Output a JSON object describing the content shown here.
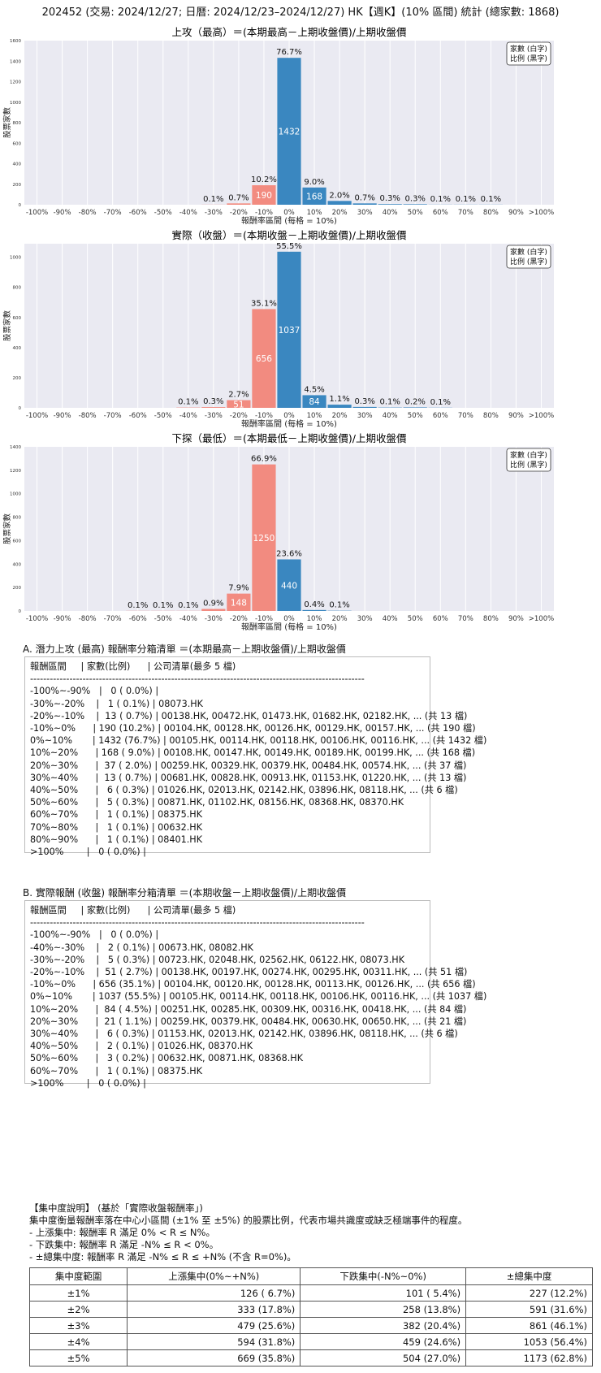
{
  "page_title": "202452 (交易: 2024/12/27; 日曆: 2024/12/23–2024/12/27) HK【週K】(10% 區間) 統計 (總家數: 1868)",
  "legend_box": {
    "line1": "家數 (白字)",
    "line2": "比例 (黑字)"
  },
  "colors": {
    "negative": "#f28b80",
    "positive": "#3a87c0",
    "plot_bg": "#eaeaf2"
  },
  "chart_data": [
    {
      "type": "bar",
      "title": "上攻（最高）＝(本期最高－上期收盤價)/上期收盤價",
      "xlabel": "報酬率區間 (每格 = 10%)",
      "ylabel": "股票家數",
      "categories": [
        "-100%",
        "-90%",
        "-80%",
        "-70%",
        "-60%",
        "-50%",
        "-40%",
        "-30%",
        "-20%",
        "-10%",
        "0%",
        "10%",
        "20%",
        "30%",
        "40%",
        "50%",
        "60%",
        "70%",
        "80%",
        "90%",
        ">100%"
      ],
      "values": [
        0,
        0,
        0,
        0,
        0,
        0,
        0,
        1,
        13,
        190,
        1432,
        168,
        37,
        13,
        6,
        5,
        1,
        1,
        1,
        0,
        0
      ],
      "pct_labels": [
        "",
        "",
        "",
        "",
        "",
        "",
        "",
        "0.1%",
        "0.7%",
        "10.2%",
        "76.7%",
        "9.0%",
        "2.0%",
        "0.7%",
        "0.3%",
        "0.3%",
        "0.1%",
        "0.1%",
        "0.1%",
        "",
        ""
      ],
      "count_labels": [
        "",
        "",
        "",
        "",
        "",
        "",
        "",
        "",
        "",
        "190",
        "1432",
        "168",
        "",
        "",
        "",
        "",
        "",
        "",
        "",
        "",
        ""
      ],
      "yticks": [
        0,
        200,
        400,
        600,
        800,
        1000,
        1200,
        1400,
        1600
      ],
      "ylim": [
        0,
        1600
      ]
    },
    {
      "type": "bar",
      "title": "實際（收盤）＝(本期收盤－上期收盤價)/上期收盤價",
      "xlabel": "報酬率區間 (每格 = 10%)",
      "ylabel": "股票家數",
      "categories": [
        "-100%",
        "-90%",
        "-80%",
        "-70%",
        "-60%",
        "-50%",
        "-40%",
        "-30%",
        "-20%",
        "-10%",
        "0%",
        "10%",
        "20%",
        "30%",
        "40%",
        "50%",
        "60%",
        "70%",
        "80%",
        "90%",
        ">100%"
      ],
      "values": [
        0,
        0,
        0,
        0,
        0,
        0,
        2,
        5,
        51,
        656,
        1037,
        84,
        21,
        6,
        2,
        3,
        1,
        0,
        0,
        0,
        0
      ],
      "pct_labels": [
        "",
        "",
        "",
        "",
        "",
        "",
        "0.1%",
        "0.3%",
        "2.7%",
        "35.1%",
        "55.5%",
        "4.5%",
        "1.1%",
        "0.3%",
        "0.1%",
        "0.2%",
        "0.1%",
        "",
        "",
        "",
        ""
      ],
      "count_labels": [
        "",
        "",
        "",
        "",
        "",
        "",
        "",
        "",
        "51",
        "656",
        "1037",
        "84",
        "",
        "",
        "",
        "",
        "",
        "",
        "",
        "",
        ""
      ],
      "yticks": [
        0,
        200,
        400,
        600,
        800,
        1000
      ],
      "ylim": [
        0,
        1090
      ]
    },
    {
      "type": "bar",
      "title": "下探（最低）＝(本期最低－上期收盤價)/上期收盤價",
      "xlabel": "報酬率區間 (每格 = 10%)",
      "ylabel": "股票家數",
      "categories": [
        "-100%",
        "-90%",
        "-80%",
        "-70%",
        "-60%",
        "-50%",
        "-40%",
        "-30%",
        "-20%",
        "-10%",
        "0%",
        "10%",
        "20%",
        "30%",
        "40%",
        "50%",
        "60%",
        "70%",
        "80%",
        "90%",
        ">100%"
      ],
      "values": [
        0,
        0,
        0,
        0,
        1,
        1,
        1,
        17,
        148,
        1250,
        440,
        8,
        2,
        0,
        0,
        0,
        0,
        0,
        0,
        0,
        0
      ],
      "pct_labels": [
        "",
        "",
        "",
        "",
        "0.1%",
        "0.1%",
        "0.1%",
        "0.9%",
        "7.9%",
        "66.9%",
        "23.6%",
        "0.4%",
        "0.1%",
        "",
        "",
        "",
        "",
        "",
        "",
        "",
        ""
      ],
      "count_labels": [
        "",
        "",
        "",
        "",
        "",
        "",
        "",
        "",
        "148",
        "1250",
        "440",
        "",
        "",
        "",
        "",
        "",
        "",
        "",
        "",
        "",
        ""
      ],
      "yticks": [
        0,
        200,
        400,
        600,
        800,
        1000,
        1200,
        1400
      ],
      "ylim": [
        0,
        1400
      ]
    }
  ],
  "section_a": {
    "heading": "A. 潛力上攻 (最高) 報酬率分箱清單 ＝(本期最高－上期收盤價)/上期收盤價",
    "lines": [
      "報酬區間     | 家數(比例)      | 公司清單(最多 5 檔)",
      "------------------------------------------------------------------------------------------------------",
      "-100%~-90%   |   0 ( 0.0%) |",
      "-30%~-20%    |   1 ( 0.1%) | 08073.HK",
      "-20%~-10%    |  13 ( 0.7%) | 00138.HK, 00472.HK, 01473.HK, 01682.HK, 02182.HK, ... (共 13 檔)",
      "-10%~0%      | 190 (10.2%) | 00104.HK, 00128.HK, 00126.HK, 00129.HK, 00157.HK, ... (共 190 檔)",
      "0%~10%       | 1432 (76.7%) | 00105.HK, 00114.HK, 00118.HK, 00106.HK, 00116.HK, ... (共 1432 檔)",
      "10%~20%      | 168 ( 9.0%) | 00108.HK, 00147.HK, 00149.HK, 00189.HK, 00199.HK, ... (共 168 檔)",
      "20%~30%      |  37 ( 2.0%) | 00259.HK, 00329.HK, 00379.HK, 00484.HK, 00574.HK, ... (共 37 檔)",
      "30%~40%      |  13 ( 0.7%) | 00681.HK, 00828.HK, 00913.HK, 01153.HK, 01220.HK, ... (共 13 檔)",
      "40%~50%      |   6 ( 0.3%) | 01026.HK, 02013.HK, 02142.HK, 03896.HK, 08118.HK, ... (共 6 檔)",
      "50%~60%      |   5 ( 0.3%) | 00871.HK, 01102.HK, 08156.HK, 08368.HK, 08370.HK",
      "60%~70%      |   1 ( 0.1%) | 08375.HK",
      "70%~80%      |   1 ( 0.1%) | 00632.HK",
      "80%~90%      |   1 ( 0.1%) | 08401.HK",
      ">100%        |   0 ( 0.0%) |"
    ]
  },
  "section_b": {
    "heading": "B. 實際報酬 (收盤) 報酬率分箱清單 ＝(本期收盤－上期收盤價)/上期收盤價",
    "lines": [
      "報酬區間     | 家數(比例)      | 公司清單(最多 5 檔)",
      "------------------------------------------------------------------------------------------------------",
      "-100%~-90%   |   0 ( 0.0%) |",
      "-40%~-30%    |   2 ( 0.1%) | 00673.HK, 08082.HK",
      "-30%~-20%    |   5 ( 0.3%) | 00723.HK, 02048.HK, 02562.HK, 06122.HK, 08073.HK",
      "-20%~-10%    |  51 ( 2.7%) | 00138.HK, 00197.HK, 00274.HK, 00295.HK, 00311.HK, ... (共 51 檔)",
      "-10%~0%      | 656 (35.1%) | 00104.HK, 00120.HK, 00128.HK, 00113.HK, 00126.HK, ... (共 656 檔)",
      "0%~10%       | 1037 (55.5%) | 00105.HK, 00114.HK, 00118.HK, 00106.HK, 00116.HK, ... (共 1037 檔)",
      "10%~20%      |  84 ( 4.5%) | 00251.HK, 00285.HK, 00309.HK, 00316.HK, 00418.HK, ... (共 84 檔)",
      "20%~30%      |  21 ( 1.1%) | 00259.HK, 00379.HK, 00484.HK, 00630.HK, 00650.HK, ... (共 21 檔)",
      "30%~40%      |   6 ( 0.3%) | 01153.HK, 02013.HK, 02142.HK, 03896.HK, 08118.HK, ... (共 6 檔)",
      "40%~50%      |   2 ( 0.1%) | 01026.HK, 08370.HK",
      "50%~60%      |   3 ( 0.2%) | 00632.HK, 00871.HK, 08368.HK",
      "60%~70%      |   1 ( 0.1%) | 08375.HK",
      ">100%        |   0 ( 0.0%) |"
    ]
  },
  "notes": {
    "lines": [
      "【集中度說明】 (基於「實際收盤報酬率」)",
      "集中度衡量報酬率落在中心小區間 (±1% 至 ±5%) 的股票比例，代表市場共識度或缺乏極端事件的程度。",
      " - 上漲集中: 報酬率 R 滿足 0% < R ≤ N%。",
      " - 下跌集中: 報酬率 R 滿足 -N% ≤ R < 0%。",
      " - ±總集中度: 報酬率 R 滿足 -N% ≤ R ≤ +N% (不含 R=0%)。"
    ]
  },
  "concentration_table": {
    "headers": [
      "集中度範圍",
      "上漲集中(0%~+N%)",
      "下跌集中(-N%~0%)",
      "±總集中度"
    ],
    "rows": [
      [
        "±1%",
        "126 ( 6.7%)",
        "101 ( 5.4%)",
        "227 (12.2%)"
      ],
      [
        "±2%",
        "333 (17.8%)",
        "258 (13.8%)",
        "591 (31.6%)"
      ],
      [
        "±3%",
        "479 (25.6%)",
        "382 (20.4%)",
        "861 (46.1%)"
      ],
      [
        "±4%",
        "594 (31.8%)",
        "459 (24.6%)",
        "1053 (56.4%)"
      ],
      [
        "±5%",
        "669 (35.8%)",
        "504 (27.0%)",
        "1173 (62.8%)"
      ]
    ]
  }
}
